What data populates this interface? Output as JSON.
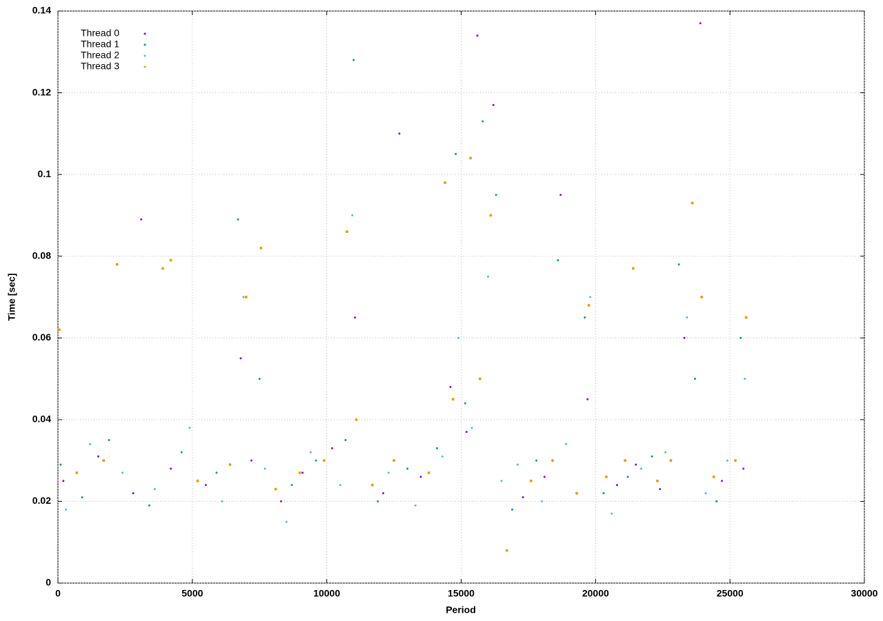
{
  "chart_data": {
    "type": "scatter",
    "xlabel": "Period",
    "ylabel": "Time [sec]",
    "xlim": [
      0,
      30000
    ],
    "xticks": [
      0,
      5000,
      10000,
      15000,
      20000,
      25000,
      30000
    ],
    "ylim": [
      0,
      0.14
    ],
    "yticks": [
      0,
      0.02,
      0.04,
      0.06,
      0.08,
      0.1,
      0.12,
      0.14
    ],
    "grid": true,
    "legend": "top-left",
    "series": [
      {
        "name": "Thread 0",
        "color": "#9400d3",
        "x": [
          200,
          1500,
          2800,
          3100,
          4200,
          5500,
          6800,
          7200,
          8300,
          9100,
          10200,
          11050,
          12100,
          12700,
          13500,
          14600,
          15200,
          15600,
          16200,
          17300,
          18100,
          18700,
          19700,
          20800,
          21500,
          22400,
          23300,
          23900,
          24700,
          25500
        ],
        "values": [
          0.025,
          0.031,
          0.022,
          0.089,
          0.028,
          0.024,
          0.055,
          0.03,
          0.02,
          0.027,
          0.033,
          0.065,
          0.022,
          0.11,
          0.026,
          0.048,
          0.037,
          0.134,
          0.117,
          0.021,
          0.026,
          0.095,
          0.045,
          0.024,
          0.029,
          0.023,
          0.06,
          0.137,
          0.025,
          0.028
        ]
      },
      {
        "name": "Thread 1",
        "color": "#009e73",
        "x": [
          100,
          900,
          1900,
          3400,
          4600,
          5900,
          6700,
          7500,
          8700,
          9600,
          10700,
          11000,
          11900,
          13000,
          14100,
          14800,
          15150,
          15800,
          16300,
          16900,
          17800,
          18600,
          19600,
          20300,
          21200,
          22100,
          23100,
          23700,
          24500,
          25400
        ],
        "values": [
          0.029,
          0.021,
          0.035,
          0.019,
          0.032,
          0.027,
          0.089,
          0.05,
          0.024,
          0.03,
          0.035,
          0.128,
          0.02,
          0.028,
          0.033,
          0.105,
          0.044,
          0.113,
          0.095,
          0.018,
          0.03,
          0.079,
          0.065,
          0.022,
          0.026,
          0.031,
          0.078,
          0.05,
          0.02,
          0.06
        ]
      },
      {
        "name": "Thread 2",
        "color": "#56b4e9",
        "x": [
          300,
          1200,
          2400,
          3600,
          4900,
          6100,
          6900,
          7700,
          8500,
          9400,
          10500,
          10950,
          12300,
          13300,
          14300,
          14900,
          15400,
          16000,
          16500,
          17100,
          18000,
          18900,
          19800,
          20600,
          21700,
          22600,
          23400,
          24100,
          24900,
          25550
        ],
        "values": [
          0.018,
          0.034,
          0.027,
          0.023,
          0.038,
          0.02,
          0.07,
          0.028,
          0.015,
          0.032,
          0.024,
          0.09,
          0.027,
          0.019,
          0.031,
          0.06,
          0.038,
          0.075,
          0.025,
          0.029,
          0.02,
          0.034,
          0.07,
          0.017,
          0.028,
          0.032,
          0.065,
          0.022,
          0.03,
          0.05
        ]
      },
      {
        "name": "Thread 3",
        "color": "#e69f00",
        "x": [
          50,
          700,
          1700,
          2200,
          3900,
          4200,
          5200,
          6400,
          7000,
          7550,
          8100,
          9000,
          9900,
          10750,
          11100,
          11700,
          12500,
          13800,
          14400,
          14700,
          15350,
          15700,
          16100,
          16700,
          17600,
          18400,
          19300,
          19750,
          20400,
          21100,
          21400,
          22300,
          22800,
          23600,
          23950,
          24400,
          25200,
          25600
        ],
        "values": [
          0.062,
          0.027,
          0.03,
          0.078,
          0.077,
          0.079,
          0.025,
          0.029,
          0.07,
          0.082,
          0.023,
          0.027,
          0.03,
          0.086,
          0.04,
          0.024,
          0.03,
          0.027,
          0.098,
          0.045,
          0.104,
          0.05,
          0.09,
          0.008,
          0.025,
          0.03,
          0.022,
          0.068,
          0.026,
          0.03,
          0.077,
          0.025,
          0.03,
          0.093,
          0.07,
          0.026,
          0.03,
          0.065
        ]
      }
    ]
  }
}
